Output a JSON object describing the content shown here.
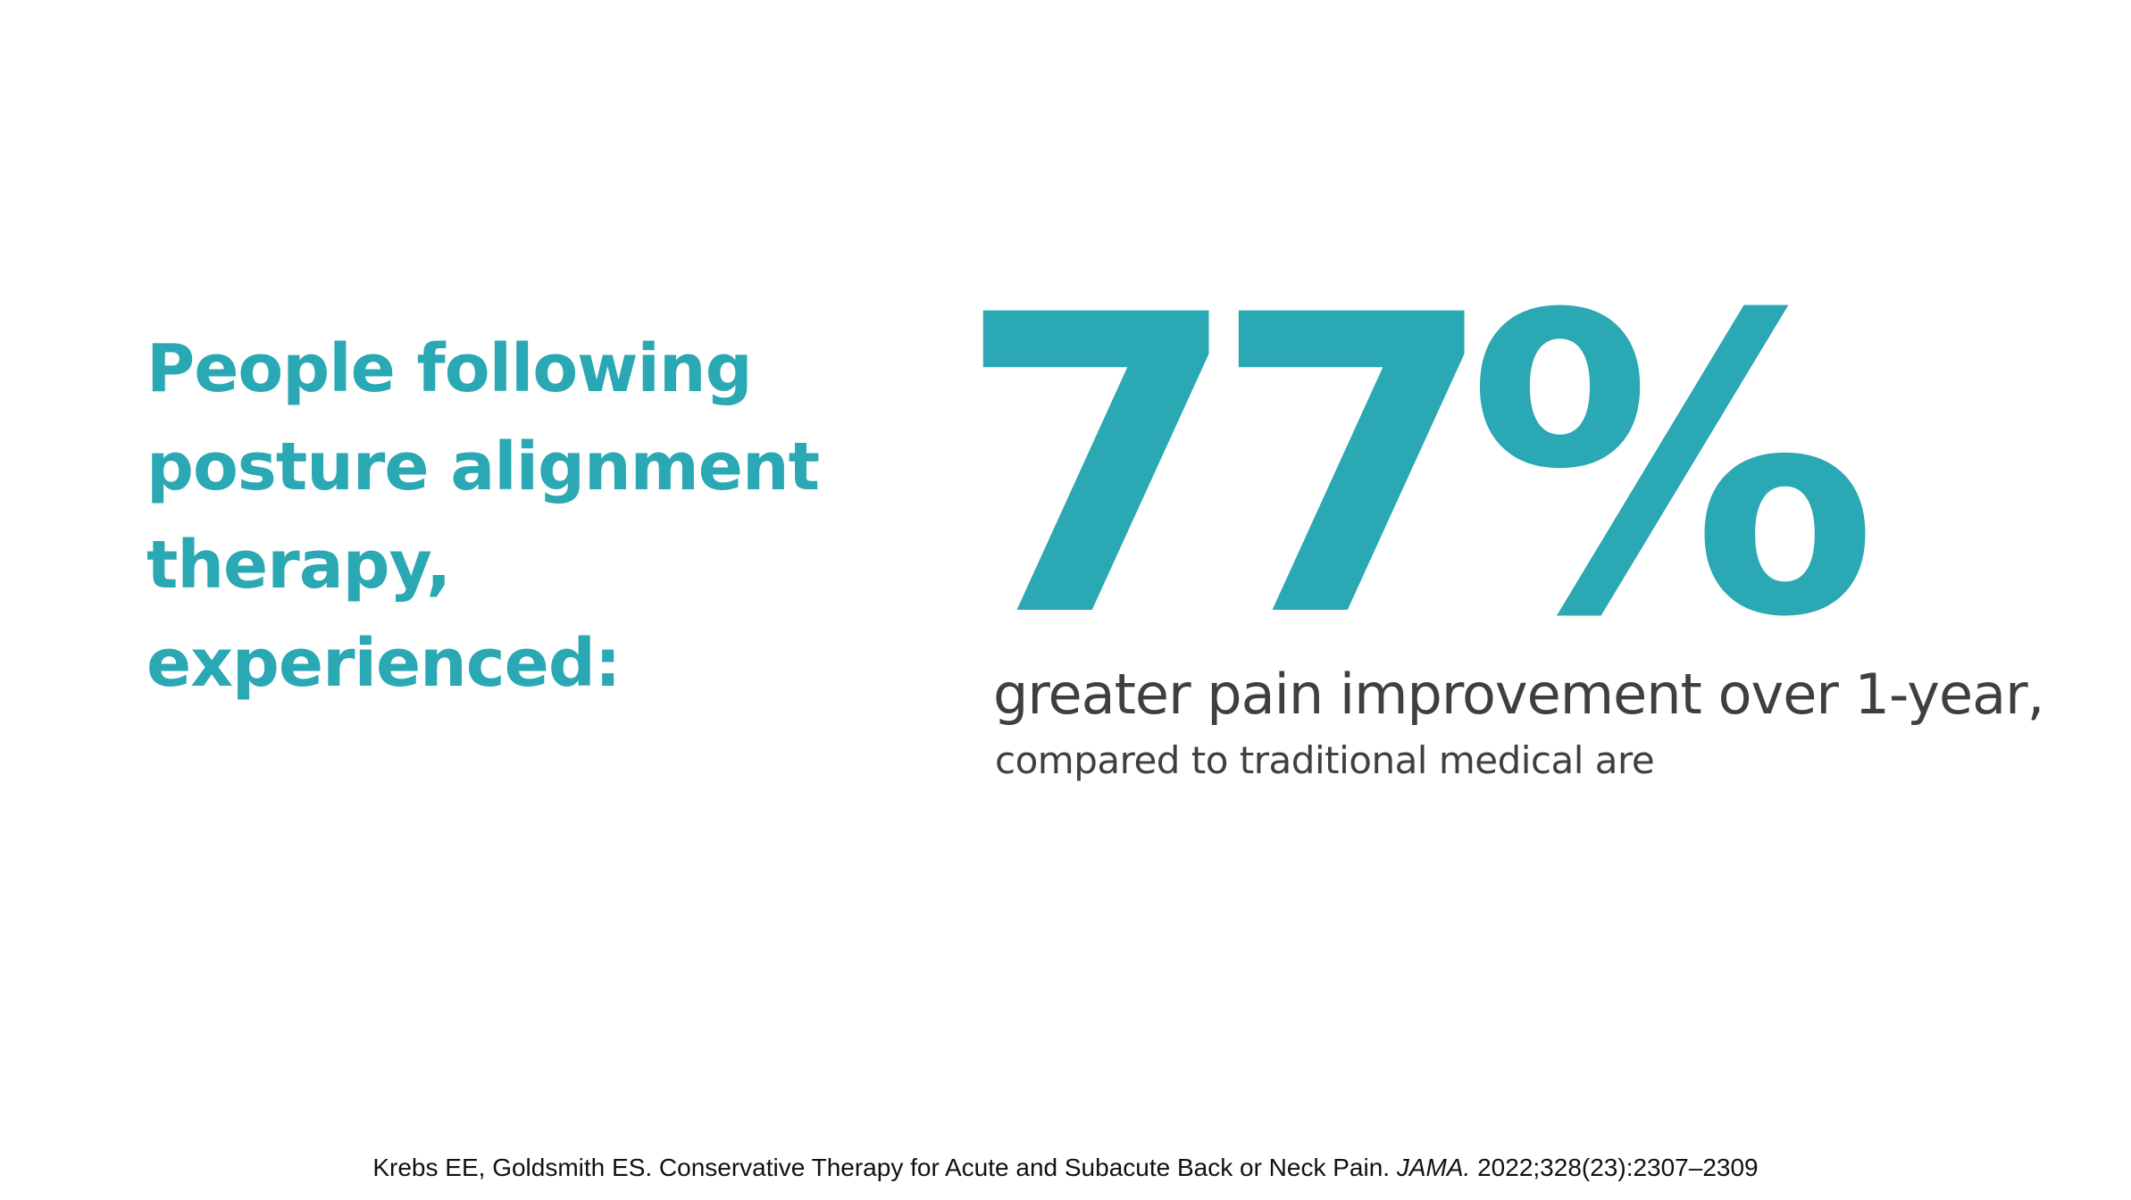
{
  "lead": {
    "lines": [
      "People following",
      "posture alignment",
      "therapy,",
      "experienced:"
    ]
  },
  "stat": {
    "value": "77%"
  },
  "description": {
    "main": "greater pain improvement over 1-year,",
    "sub": "compared to traditional medical are"
  },
  "citation": {
    "authors_title": "Krebs EE, Goldsmith ES. Conservative Therapy for Acute and Subacute Back or Neck Pain.",
    "journal": "JAMA.",
    "details": "2022;328(23):2307–2309"
  },
  "colors": {
    "accent": "#2aa8b3",
    "body_text": "#3f3f3f",
    "citation_text": "#111111",
    "background": "#ffffff"
  }
}
